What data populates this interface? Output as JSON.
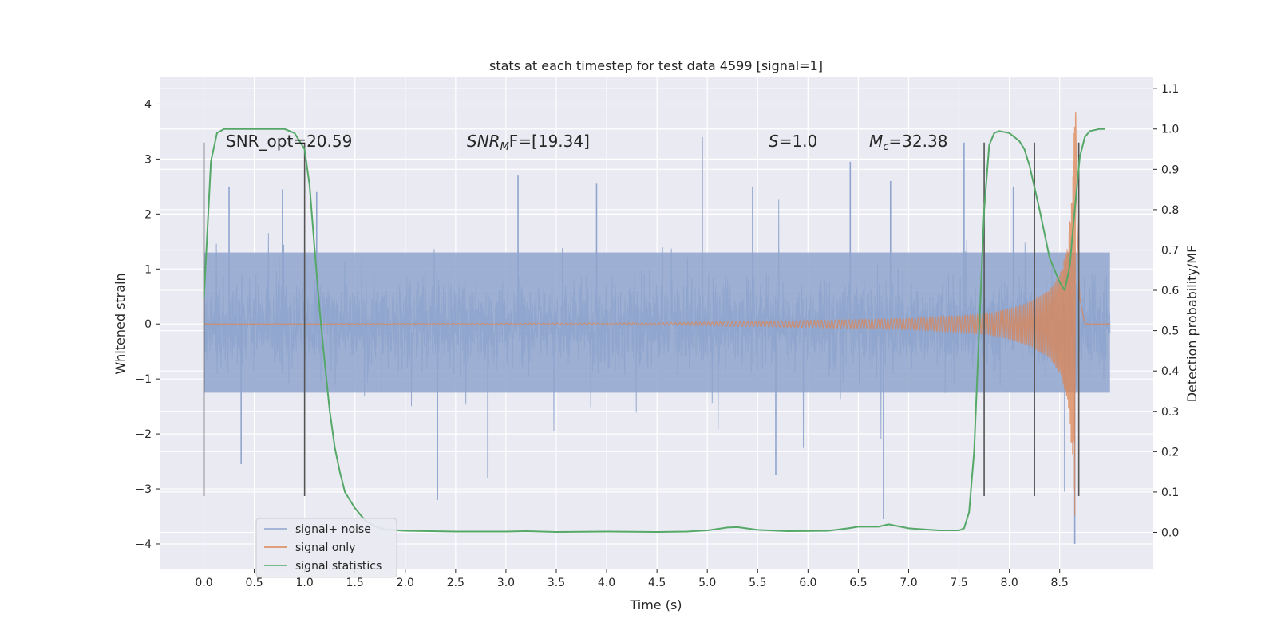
{
  "chart_data": {
    "type": "line",
    "title": "stats at each timestep for test data 4599 [signal=1]",
    "xlabel": "Time (s)",
    "ylabel": "Whitened strain",
    "ylabel_right": "Detection probability/MF",
    "xlim": [
      -0.44,
      9.43
    ],
    "ylim": [
      -4.45,
      4.5
    ],
    "ylim_right": [
      -0.09,
      1.13
    ],
    "x_ticks": [
      "0.0",
      "0.5",
      "1.0",
      "1.5",
      "2.0",
      "2.5",
      "3.0",
      "3.5",
      "4.0",
      "4.5",
      "5.0",
      "5.5",
      "6.0",
      "6.5",
      "7.0",
      "7.5",
      "8.0",
      "8.5"
    ],
    "y_ticks": [
      "4",
      "3",
      "2",
      "1",
      "0",
      "−1",
      "−2",
      "−3",
      "−4"
    ],
    "y_ticks_right": [
      "1.1",
      "1.0",
      "0.9",
      "0.8",
      "0.7",
      "0.6",
      "0.5",
      "0.4",
      "0.3",
      "0.2",
      "0.1",
      "0.0"
    ],
    "grid": true,
    "legend_position": "bottom-left",
    "annotations": {
      "snr_opt": "SNR_opt=20.59",
      "snr_mf_prefix": "SNR",
      "snr_mf_sub": "M",
      "snr_mf_suffix": "F=[19.34]",
      "s_italic": "S",
      "s_value": "=1.0",
      "mc_italic": "M",
      "mc_sub": "c",
      "mc_value": "=32.38"
    },
    "vertical_lines": [
      {
        "x": 0.0,
        "y0": -3.13,
        "y1": 3.3
      },
      {
        "x": 1.0,
        "y0": -3.13,
        "y1": 3.3
      },
      {
        "x": 7.75,
        "y0": -3.13,
        "y1": 3.3
      },
      {
        "x": 8.25,
        "y0": -3.13,
        "y1": 3.3
      },
      {
        "x": 8.69,
        "y0": -3.13,
        "y1": 3.3
      }
    ],
    "series": [
      {
        "name": "signal+ noise",
        "color": "#8fa5cd",
        "duration": 9.0,
        "band_min": -1.25,
        "band_max": 1.3,
        "outliers": [
          [
            0.25,
            2.5
          ],
          [
            0.37,
            -2.55
          ],
          [
            0.78,
            2.45
          ],
          [
            1.12,
            2.4
          ],
          [
            2.32,
            -3.2
          ],
          [
            2.82,
            -2.8
          ],
          [
            3.12,
            2.7
          ],
          [
            3.9,
            2.55
          ],
          [
            4.95,
            3.4
          ],
          [
            5.45,
            2.5
          ],
          [
            5.68,
            -2.75
          ],
          [
            6.42,
            2.95
          ],
          [
            6.75,
            -3.55
          ],
          [
            6.82,
            2.6
          ],
          [
            7.55,
            3.3
          ],
          [
            8.04,
            2.5
          ],
          [
            8.55,
            -3.05
          ],
          [
            8.65,
            -4.0
          ]
        ]
      },
      {
        "name": "signal only",
        "color": "#dd8452",
        "chirp_points": [
          [
            0.0,
            0.0
          ],
          [
            4.5,
            0.02
          ],
          [
            5.5,
            0.05
          ],
          [
            6.5,
            0.08
          ],
          [
            7.0,
            0.1
          ],
          [
            7.5,
            0.15
          ],
          [
            7.8,
            0.2
          ],
          [
            8.0,
            0.28
          ],
          [
            8.2,
            0.4
          ],
          [
            8.4,
            0.62
          ],
          [
            8.5,
            0.9
          ],
          [
            8.58,
            1.4
          ],
          [
            8.62,
            2.3
          ],
          [
            8.65,
            3.8
          ],
          [
            8.66,
            4.2
          ],
          [
            8.67,
            2.2
          ],
          [
            8.7,
            0.5
          ],
          [
            8.75,
            0.0
          ],
          [
            9.0,
            0.0
          ]
        ]
      },
      {
        "name": "signal statistics",
        "color": "#55a868",
        "x": [
          0.0,
          0.07,
          0.13,
          0.2,
          0.3,
          0.5,
          0.7,
          0.8,
          0.9,
          0.95,
          1.0,
          1.05,
          1.1,
          1.15,
          1.2,
          1.25,
          1.3,
          1.35,
          1.4,
          1.5,
          1.6,
          1.7,
          1.8,
          2.0,
          2.5,
          3.0,
          3.2,
          3.5,
          4.0,
          4.5,
          4.8,
          5.0,
          5.2,
          5.3,
          5.5,
          5.8,
          6.2,
          6.4,
          6.5,
          6.7,
          6.8,
          7.0,
          7.3,
          7.5,
          7.55,
          7.6,
          7.65,
          7.7,
          7.75,
          7.8,
          7.85,
          7.9,
          8.0,
          8.1,
          8.15,
          8.2,
          8.3,
          8.4,
          8.5,
          8.55,
          8.6,
          8.65,
          8.7,
          8.75,
          8.8,
          8.9,
          8.95
        ],
        "values": [
          0.58,
          0.92,
          0.99,
          1.0,
          1.0,
          1.0,
          1.0,
          1.0,
          0.99,
          0.97,
          0.95,
          0.86,
          0.7,
          0.55,
          0.42,
          0.3,
          0.21,
          0.15,
          0.1,
          0.06,
          0.03,
          0.015,
          0.007,
          0.004,
          0.002,
          0.002,
          0.003,
          0.001,
          0.002,
          0.001,
          0.002,
          0.005,
          0.012,
          0.013,
          0.006,
          0.003,
          0.004,
          0.01,
          0.014,
          0.014,
          0.02,
          0.01,
          0.005,
          0.005,
          0.01,
          0.05,
          0.2,
          0.5,
          0.8,
          0.96,
          0.99,
          0.995,
          0.99,
          0.97,
          0.95,
          0.91,
          0.8,
          0.68,
          0.62,
          0.6,
          0.66,
          0.8,
          0.93,
          0.98,
          0.995,
          1.0,
          1.0
        ]
      }
    ]
  }
}
